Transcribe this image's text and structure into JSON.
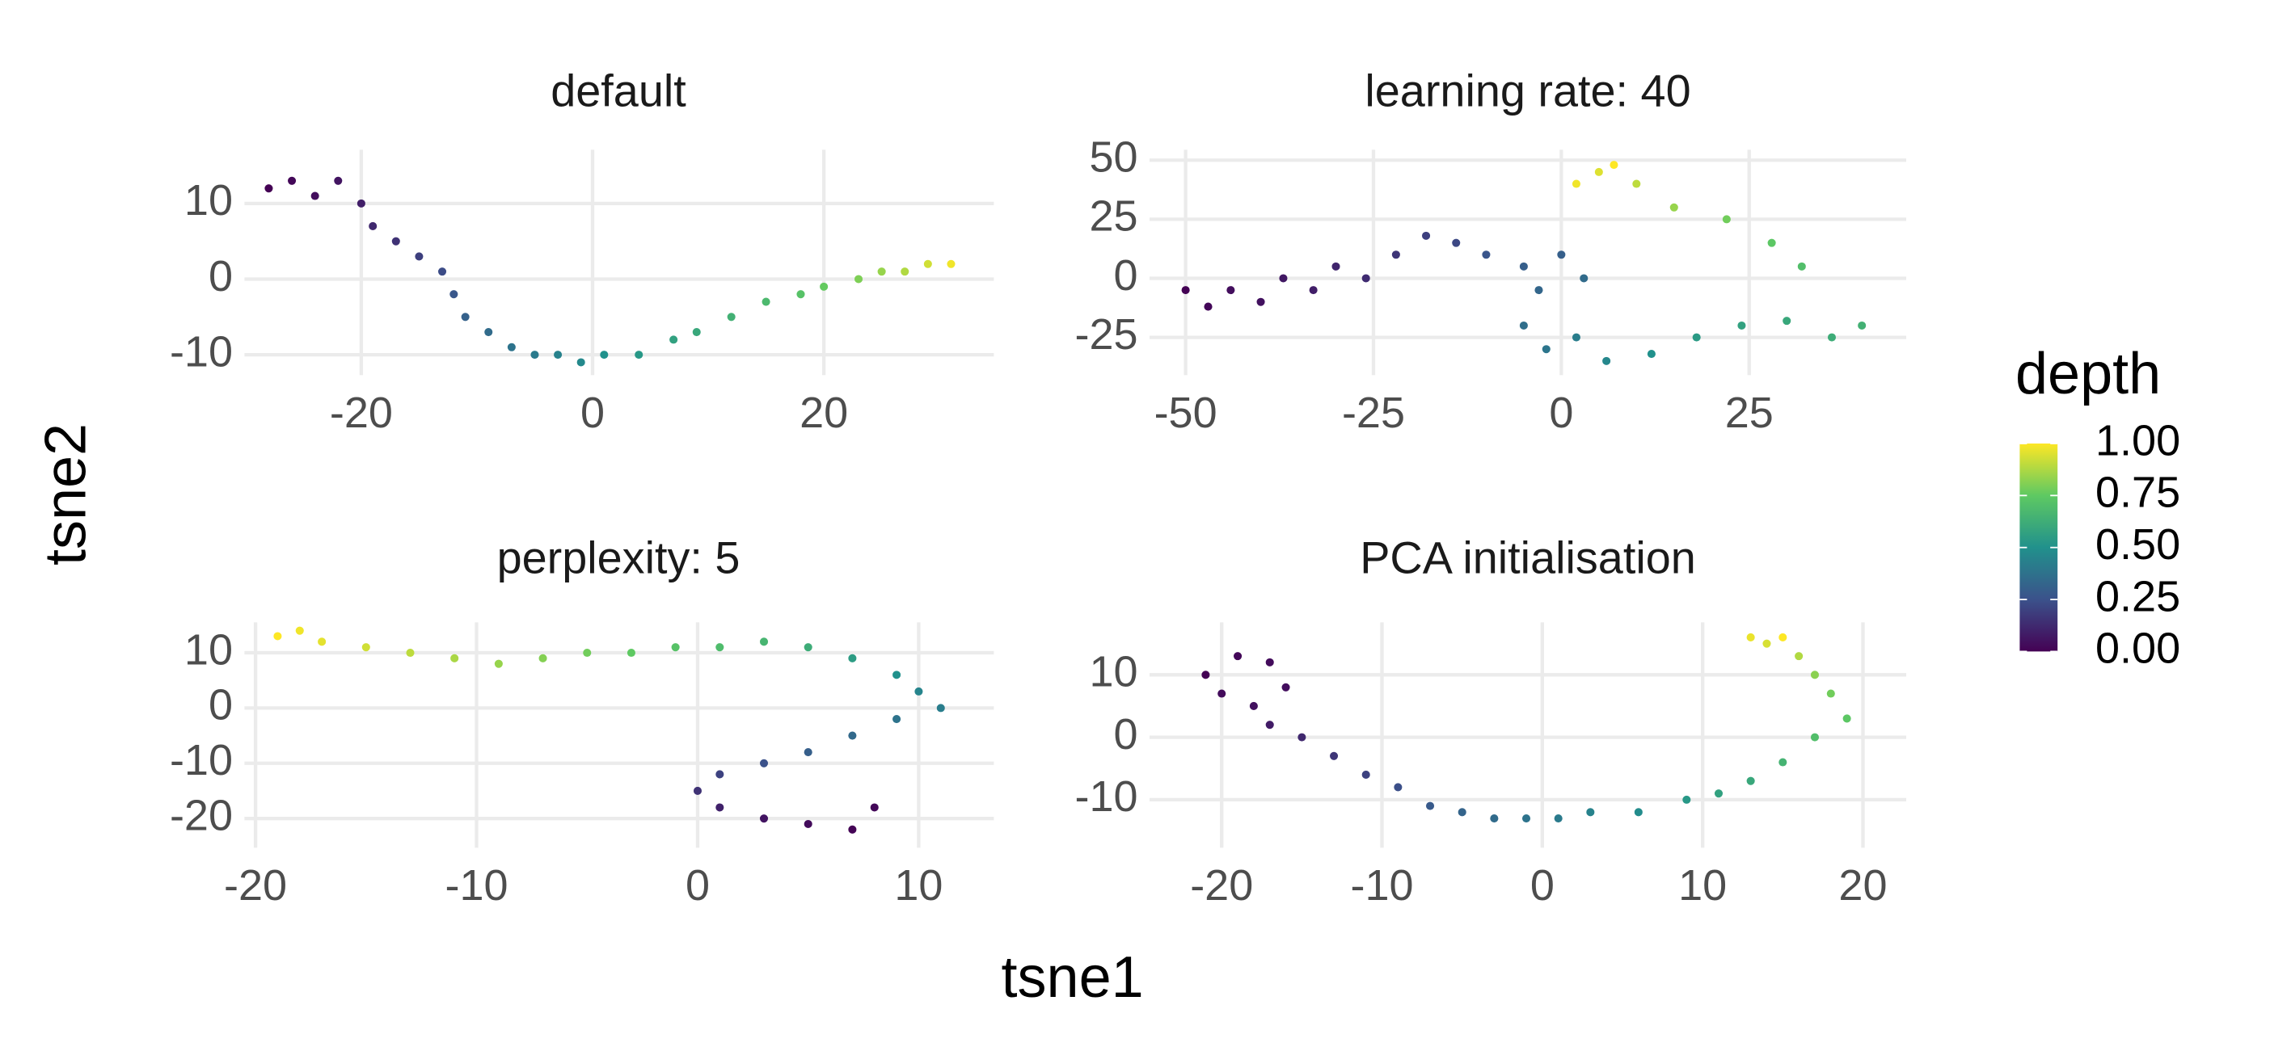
{
  "xlabel": "tsne1",
  "ylabel": "tsne2",
  "colorbar": {
    "title": "depth",
    "range": [
      0,
      1
    ],
    "ticks": [
      {
        "value": 0,
        "label": "0.00"
      },
      {
        "value": 0.25,
        "label": "0.25"
      },
      {
        "value": 0.5,
        "label": "0.50"
      },
      {
        "value": 0.75,
        "label": "0.75"
      },
      {
        "value": 1,
        "label": "1.00"
      }
    ]
  },
  "chart_data": [
    {
      "type": "scatter",
      "title": "default",
      "x": [
        -28,
        -26,
        -24,
        -22,
        -20,
        -19,
        -17,
        -15,
        -13,
        -12,
        -11,
        -9,
        -7,
        -5,
        -3,
        -1,
        1,
        4,
        7,
        9,
        12,
        15,
        18,
        20,
        23,
        25,
        27,
        29,
        31
      ],
      "values": [
        12,
        13,
        11,
        13,
        10,
        7,
        5,
        3,
        1,
        -2,
        -5,
        -7,
        -9,
        -10,
        -10,
        -11,
        -10,
        -10,
        -8,
        -7,
        -5,
        -3,
        -2,
        -1,
        0,
        1,
        1,
        2,
        2
      ],
      "color_values": [
        0,
        0.02,
        0.04,
        0.06,
        0.09,
        0.12,
        0.15,
        0.19,
        0.23,
        0.27,
        0.31,
        0.35,
        0.38,
        0.41,
        0.44,
        0.47,
        0.5,
        0.53,
        0.57,
        0.6,
        0.64,
        0.68,
        0.72,
        0.76,
        0.8,
        0.84,
        0.88,
        0.93,
        0.98
      ],
      "xlim": [
        -30.1,
        34.7
      ],
      "ylim": [
        -12.7,
        17.1
      ],
      "xticks": [
        -20,
        0,
        20
      ],
      "yticks": [
        -10,
        0,
        10
      ],
      "grid": true
    },
    {
      "type": "scatter",
      "title": "learning rate: 40",
      "x": [
        -50,
        -47,
        -44,
        -40,
        -37,
        -33,
        -30,
        -26,
        -22,
        -18,
        -14,
        -10,
        -5,
        -3,
        -5,
        -2,
        2,
        0,
        3,
        6,
        12,
        18,
        24,
        30,
        36,
        40,
        32,
        28,
        22,
        15,
        10,
        5,
        2,
        7
      ],
      "values": [
        -5,
        -12,
        -5,
        -10,
        0,
        -5,
        5,
        0,
        10,
        18,
        15,
        10,
        5,
        -5,
        -20,
        -30,
        -25,
        10,
        0,
        -35,
        -32,
        -25,
        -20,
        -18,
        -25,
        -20,
        5,
        15,
        25,
        30,
        40,
        45,
        40,
        48
      ],
      "color_values": [
        0,
        0.02,
        0.04,
        0.05,
        0.07,
        0.09,
        0.11,
        0.13,
        0.16,
        0.19,
        0.22,
        0.26,
        0.3,
        0.33,
        0.36,
        0.39,
        0.42,
        0.3,
        0.35,
        0.46,
        0.5,
        0.54,
        0.57,
        0.6,
        0.62,
        0.64,
        0.7,
        0.74,
        0.78,
        0.84,
        0.9,
        0.95,
        0.98,
        1
      ],
      "xlim": [
        -54.8,
        45.9
      ],
      "ylim": [
        -41,
        54.4
      ],
      "xticks": [
        -50,
        -25,
        0,
        25
      ],
      "yticks": [
        -25,
        0,
        25,
        50
      ],
      "grid": true
    },
    {
      "type": "scatter",
      "title": "perplexity: 5",
      "x": [
        -19,
        -18,
        -17,
        -15,
        -13,
        -11,
        -9,
        -7,
        -5,
        -3,
        -1,
        1,
        3,
        5,
        7,
        9,
        10,
        11,
        9,
        7,
        5,
        3,
        1,
        0,
        1,
        3,
        5,
        7,
        8
      ],
      "values": [
        13,
        14,
        12,
        11,
        10,
        9,
        8,
        9,
        10,
        10,
        11,
        11,
        12,
        11,
        9,
        6,
        3,
        0,
        -2,
        -5,
        -8,
        -10,
        -12,
        -15,
        -18,
        -20,
        -21,
        -22,
        -18
      ],
      "color_values": [
        1,
        0.98,
        0.96,
        0.93,
        0.9,
        0.87,
        0.84,
        0.81,
        0.78,
        0.75,
        0.72,
        0.69,
        0.66,
        0.62,
        0.55,
        0.5,
        0.45,
        0.42,
        0.38,
        0.34,
        0.3,
        0.25,
        0.2,
        0.15,
        0.1,
        0.06,
        0.03,
        0.01,
        0.02
      ],
      "xlim": [
        -20.5,
        13.4
      ],
      "ylim": [
        -25.3,
        15.5
      ],
      "xticks": [
        -20,
        -10,
        0,
        10
      ],
      "yticks": [
        -20,
        -10,
        0,
        10
      ],
      "grid": true
    },
    {
      "type": "scatter",
      "title": "PCA initialisation",
      "x": [
        -21,
        -19,
        -17,
        -16,
        -18,
        -20,
        -17,
        -15,
        -13,
        -11,
        -9,
        -7,
        -5,
        -3,
        -1,
        1,
        3,
        6,
        9,
        11,
        13,
        15,
        17,
        19,
        18,
        17,
        16,
        14,
        15,
        13
      ],
      "values": [
        10,
        13,
        12,
        8,
        5,
        7,
        2,
        0,
        -3,
        -6,
        -8,
        -11,
        -12,
        -13,
        -13,
        -13,
        -12,
        -12,
        -10,
        -9,
        -7,
        -4,
        0,
        3,
        7,
        10,
        13,
        15,
        16,
        16
      ],
      "color_values": [
        0,
        0.02,
        0.03,
        0.04,
        0.05,
        0.03,
        0.08,
        0.12,
        0.16,
        0.2,
        0.24,
        0.28,
        0.32,
        0.35,
        0.38,
        0.41,
        0.44,
        0.48,
        0.53,
        0.57,
        0.6,
        0.65,
        0.7,
        0.74,
        0.78,
        0.82,
        0.88,
        0.94,
        1,
        0.97
      ],
      "xlim": [
        -24.5,
        22.7
      ],
      "ylim": [
        -17.7,
        18.4
      ],
      "xticks": [
        -20,
        -10,
        0,
        10,
        20
      ],
      "yticks": [
        -10,
        0,
        10
      ],
      "grid": true
    }
  ]
}
